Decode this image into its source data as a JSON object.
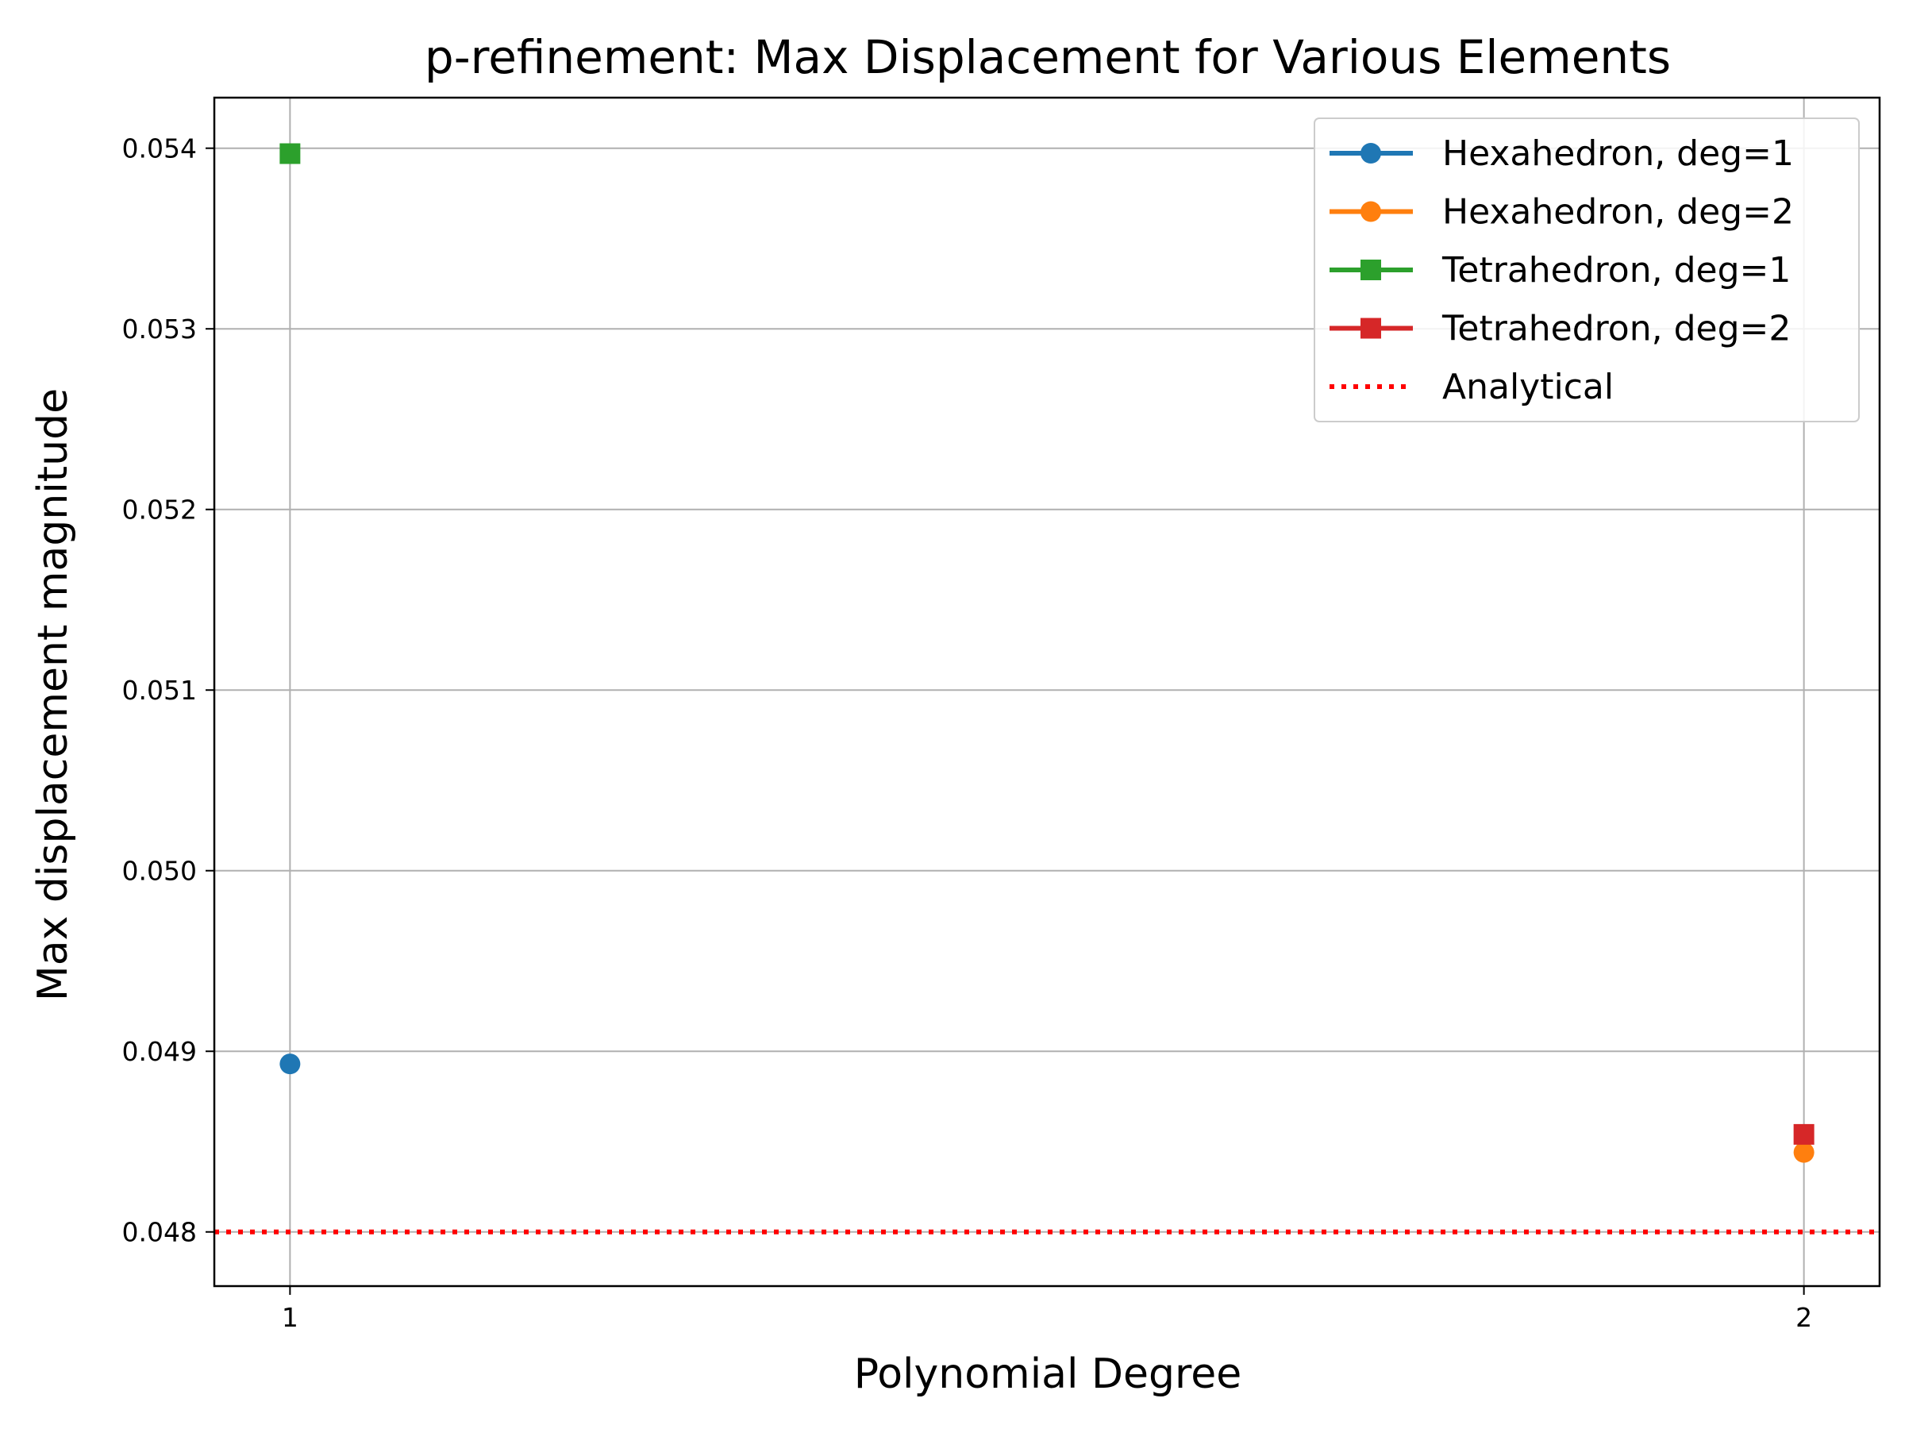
{
  "chart_data": {
    "type": "line",
    "title": "p-refinement: Max Displacement for Various Elements",
    "xlabel": "Polynomial Degree",
    "ylabel": "Max displacement magnitude",
    "x_ticks": [
      1,
      2
    ],
    "x_tick_labels": [
      "1",
      "2"
    ],
    "xlim": [
      0.95,
      2.05
    ],
    "ylim": [
      0.0477,
      0.05428
    ],
    "y_ticks": [
      0.048,
      0.049,
      0.05,
      0.051,
      0.052,
      0.053,
      0.054
    ],
    "y_tick_labels": [
      "0.048",
      "0.049",
      "0.050",
      "0.051",
      "0.052",
      "0.053",
      "0.054"
    ],
    "grid": true,
    "legend_position": "top-right",
    "series": [
      {
        "name": "Hexahedron, deg=1",
        "color": "#1f77b4",
        "marker": "circle",
        "points": [
          {
            "x": 1,
            "y": 0.04893
          }
        ]
      },
      {
        "name": "Hexahedron, deg=2",
        "color": "#ff7f0e",
        "marker": "circle",
        "points": [
          {
            "x": 2,
            "y": 0.04844
          }
        ]
      },
      {
        "name": "Tetrahedron, deg=1",
        "color": "#2ca02c",
        "marker": "square",
        "points": [
          {
            "x": 1,
            "y": 0.05397
          }
        ]
      },
      {
        "name": "Tetrahedron, deg=2",
        "color": "#d62728",
        "marker": "square",
        "points": [
          {
            "x": 2,
            "y": 0.04854
          }
        ]
      }
    ],
    "reference_lines": [
      {
        "name": "Analytical",
        "type": "horizontal",
        "y": 0.048,
        "color": "#ff0000",
        "style": "dotted"
      }
    ]
  }
}
